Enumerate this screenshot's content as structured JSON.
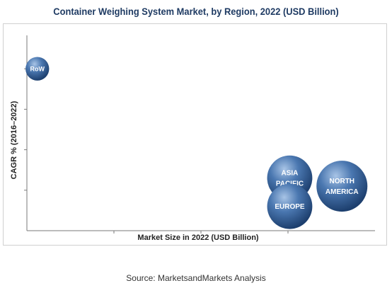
{
  "chart_data": {
    "type": "bubble",
    "title": "Container Weighing System Market, by Region, 2022 (USD Billion)",
    "xlabel": "Market Size in 2022 (USD Billion)",
    "ylabel": "CAGR % (2016–2022)",
    "grid": false,
    "series": [
      {
        "name": "RoW",
        "label_lines": [
          "RoW"
        ],
        "x": 0.3,
        "y": 8.0,
        "size": 0.3
      },
      {
        "name": "ASIA PACIFIC",
        "label_lines": [
          "ASIA",
          "PACIFIC"
        ],
        "x": 7.55,
        "y": 2.6,
        "size": 1.1
      },
      {
        "name": "NORTH AMERICA",
        "label_lines": [
          "NORTH",
          "AMERICA"
        ],
        "x": 9.05,
        "y": 2.2,
        "size": 1.4
      },
      {
        "name": "EUROPE",
        "label_lines": [
          "EUROPE"
        ],
        "x": 7.55,
        "y": 1.2,
        "size": 1.1
      }
    ],
    "xlim": [
      0,
      10
    ],
    "ylim": [
      0,
      10
    ],
    "colors": {
      "bubble_light": "#a8c4e6",
      "bubble_mid": "#4a77b0",
      "bubble_dark": "#1d3f6e",
      "axis": "#7a7a7a"
    }
  },
  "source_text": "Source: MarketsandMarkets Analysis"
}
